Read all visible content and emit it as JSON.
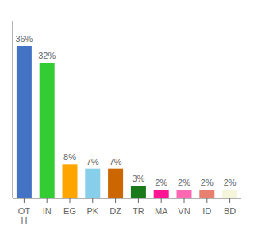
{
  "chart_data": {
    "type": "bar",
    "categories": [
      "OT\nH",
      "IN",
      "EG",
      "PK",
      "DZ",
      "TR",
      "MA",
      "VN",
      "ID",
      "BD"
    ],
    "values": [
      36,
      32,
      8,
      7,
      7,
      3,
      2,
      2,
      2,
      2
    ],
    "value_labels": [
      "36%",
      "32%",
      "8%",
      "7%",
      "7%",
      "3%",
      "2%",
      "2%",
      "2%",
      "2%"
    ],
    "data_labels": true,
    "colors": [
      "#4472C4",
      "#33CC33",
      "#FFA500",
      "#87CEEB",
      "#CC6600",
      "#1A7A1A",
      "#FF1493",
      "#FF69B4",
      "#E88070",
      "#F5F5DC"
    ],
    "ylim": [
      0,
      42
    ],
    "yticks": [],
    "tick_labels": "x",
    "grid": false
  }
}
